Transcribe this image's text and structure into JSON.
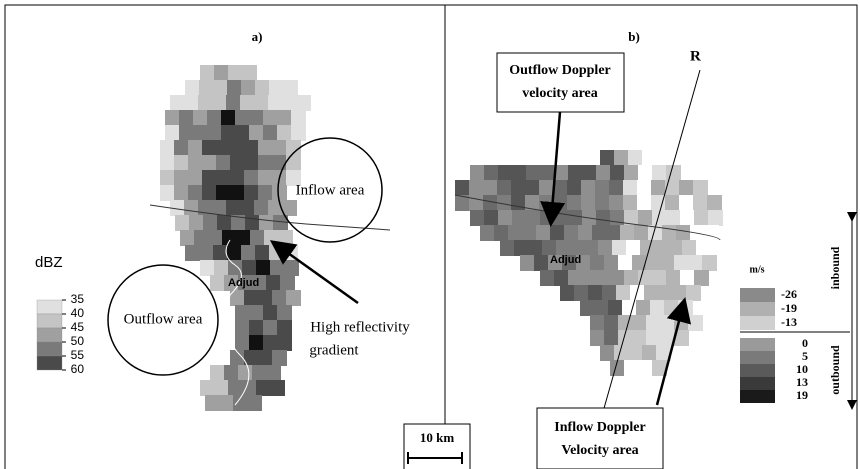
{
  "panel_a": {
    "label": "a)",
    "inflow": "Inflow area",
    "outflow": "Outflow area",
    "gradient": [
      "High reflectivity",
      "gradient"
    ],
    "town": "Adjud",
    "legend": {
      "title": "dBZ",
      "levels": [
        35,
        40,
        45,
        50,
        55,
        60
      ]
    }
  },
  "panel_b": {
    "label": "b)",
    "radial": "R",
    "outflow_box": [
      "Outflow Doppler",
      "velocity area"
    ],
    "inflow_box": [
      "Inflow Doppler",
      "Velocity area"
    ],
    "town": "Adjud",
    "legend": {
      "unit": "m/s",
      "inbound_label": "inbound",
      "inbound": [
        -26,
        -19,
        -13
      ],
      "outbound_label": "outbound",
      "outbound": [
        0,
        5,
        10,
        13,
        19
      ]
    }
  },
  "scale": "10 km"
}
